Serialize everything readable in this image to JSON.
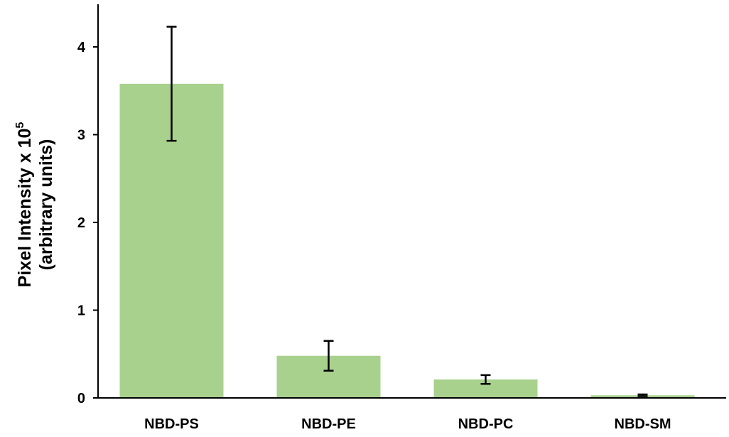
{
  "chart_data": {
    "type": "bar",
    "categories": [
      "NBD-PS",
      "NBD-PE",
      "NBD-PC",
      "NBD-SM"
    ],
    "values": [
      3.58,
      0.48,
      0.21,
      0.03
    ],
    "error": [
      0.65,
      0.17,
      0.05,
      0.01
    ],
    "ylabel_line1": "Pixel Intensity x 10",
    "ylabel_exponent": "5",
    "ylabel_line2": "(arbitrary units)",
    "ylim": [
      0,
      4.3
    ],
    "yticks": [
      0,
      1,
      2,
      3,
      4
    ],
    "grid": false,
    "colors": {
      "bar": "#a9d18e",
      "axis": "#000000",
      "error": "#000000"
    }
  }
}
